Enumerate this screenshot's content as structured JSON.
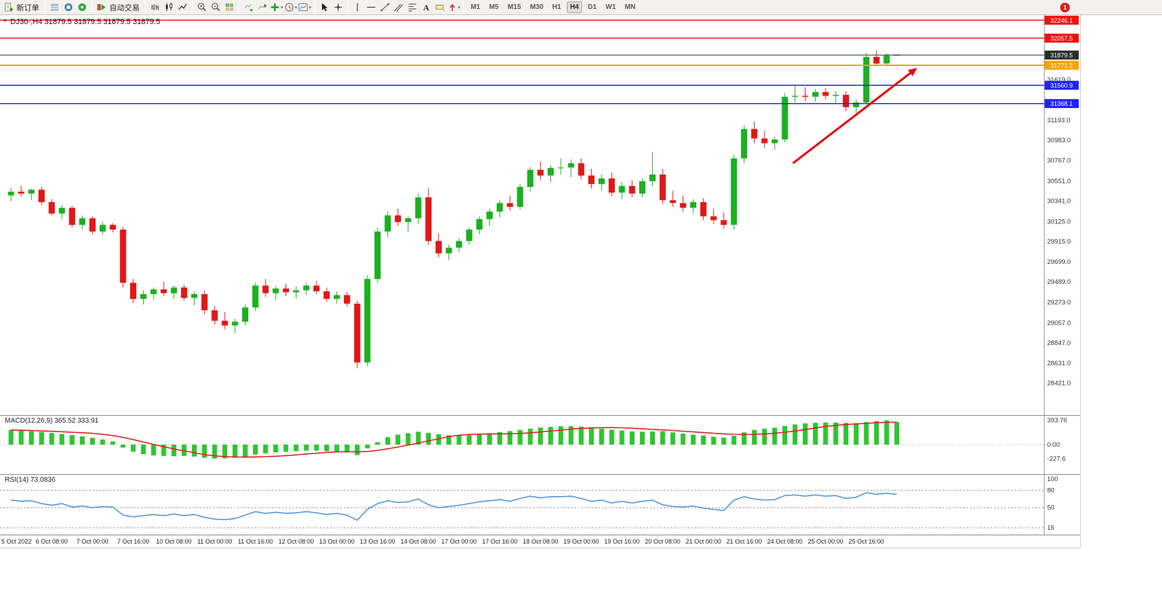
{
  "toolbar": {
    "new_order_label": "新订单",
    "auto_trading_label": "自动交易",
    "timeframes": [
      "M1",
      "M5",
      "M15",
      "M30",
      "H1",
      "H4",
      "D1",
      "W1",
      "MN"
    ],
    "active_timeframe": "H4",
    "notification_badge": "1",
    "icons": [
      "new-order",
      "charts",
      "data-window",
      "navigator",
      "auto-trading-play",
      "bar-chart",
      "candlestick-chart",
      "line-chart",
      "zoom-in",
      "zoom-out",
      "tile-windows",
      "auto-scroll",
      "chart-shift",
      "indicators-plus",
      "periods-clock",
      "templates",
      "cursor-arrow",
      "crosshair",
      "vertical-line",
      "horizontal-line",
      "trendline",
      "equidistant-channel",
      "fibonacci",
      "text-a",
      "text-label",
      "arrows"
    ]
  },
  "chart": {
    "title": "DJ30-,H4 31879.5 31879.5 31879.5 31879.5",
    "symbol": "DJ30-",
    "period": "H4",
    "ohlc_display": {
      "open": "31879.5",
      "high": "31879.5",
      "low": "31879.5",
      "close": "31879.5"
    }
  },
  "indicators": {
    "macd": {
      "label": "MACD(12,26,9) 365.52 333.91"
    },
    "rsi": {
      "label": "RSI(14) 73.0836"
    }
  },
  "chart_data": {
    "type": "candlestick",
    "symbol": "DJ30-",
    "timeframe": "H4",
    "colors": {
      "bull": "#1cb022",
      "bear": "#e01818",
      "macd_hist": "#2fc52f",
      "macd_signal": "#dd2222",
      "rsi_line": "#4a90d9",
      "arrow": "#dd1111"
    },
    "price_ylim": [
      28086,
      32300
    ],
    "candles_ohlc": [
      [
        30400,
        30480,
        30340,
        30440
      ],
      [
        30440,
        30500,
        30390,
        30420
      ],
      [
        30420,
        30470,
        30350,
        30460
      ],
      [
        30460,
        30490,
        30300,
        30330
      ],
      [
        30330,
        30360,
        30190,
        30210
      ],
      [
        30210,
        30300,
        30150,
        30270
      ],
      [
        30270,
        30290,
        30060,
        30090
      ],
      [
        30090,
        30190,
        30040,
        30160
      ],
      [
        30160,
        30180,
        29990,
        30020
      ],
      [
        30020,
        30120,
        29990,
        30090
      ],
      [
        30090,
        30110,
        30010,
        30040
      ],
      [
        30040,
        30070,
        29430,
        29480
      ],
      [
        29480,
        29520,
        29270,
        29310
      ],
      [
        29310,
        29400,
        29250,
        29360
      ],
      [
        29360,
        29430,
        29300,
        29410
      ],
      [
        29410,
        29490,
        29340,
        29370
      ],
      [
        29370,
        29450,
        29310,
        29430
      ],
      [
        29430,
        29460,
        29290,
        29320
      ],
      [
        29320,
        29390,
        29240,
        29360
      ],
      [
        29360,
        29400,
        29150,
        29190
      ],
      [
        29190,
        29240,
        29040,
        29080
      ],
      [
        29080,
        29170,
        28990,
        29030
      ],
      [
        29030,
        29100,
        28950,
        29070
      ],
      [
        29070,
        29250,
        29030,
        29220
      ],
      [
        29220,
        29480,
        29180,
        29450
      ],
      [
        29450,
        29520,
        29330,
        29370
      ],
      [
        29370,
        29450,
        29300,
        29420
      ],
      [
        29420,
        29470,
        29340,
        29380
      ],
      [
        29380,
        29440,
        29310,
        29400
      ],
      [
        29400,
        29480,
        29350,
        29450
      ],
      [
        29450,
        29500,
        29360,
        29390
      ],
      [
        29390,
        29430,
        29280,
        29310
      ],
      [
        29310,
        29390,
        29260,
        29350
      ],
      [
        29350,
        29380,
        29230,
        29260
      ],
      [
        29260,
        29290,
        28580,
        28640
      ],
      [
        28640,
        29560,
        28600,
        29520
      ],
      [
        29520,
        30060,
        29480,
        30020
      ],
      [
        30020,
        30230,
        29960,
        30190
      ],
      [
        30190,
        30260,
        30080,
        30120
      ],
      [
        30120,
        30180,
        30020,
        30160
      ],
      [
        30160,
        30420,
        30100,
        30380
      ],
      [
        30380,
        30480,
        29880,
        29920
      ],
      [
        29920,
        30000,
        29750,
        29790
      ],
      [
        29790,
        29880,
        29720,
        29850
      ],
      [
        29850,
        29950,
        29800,
        29920
      ],
      [
        29920,
        30060,
        29880,
        30040
      ],
      [
        30040,
        30180,
        29990,
        30150
      ],
      [
        30150,
        30260,
        30080,
        30230
      ],
      [
        30230,
        30350,
        30170,
        30320
      ],
      [
        30320,
        30400,
        30240,
        30280
      ],
      [
        30280,
        30520,
        30250,
        30490
      ],
      [
        30490,
        30700,
        30440,
        30670
      ],
      [
        30670,
        30760,
        30560,
        30610
      ],
      [
        30610,
        30720,
        30540,
        30690
      ],
      [
        30690,
        30790,
        30620,
        30695
      ],
      [
        30695,
        30780,
        30590,
        30740
      ],
      [
        30740,
        30790,
        30570,
        30610
      ],
      [
        30610,
        30680,
        30470,
        30520
      ],
      [
        30520,
        30620,
        30450,
        30580
      ],
      [
        30580,
        30640,
        30390,
        30430
      ],
      [
        30430,
        30540,
        30360,
        30500
      ],
      [
        30500,
        30560,
        30380,
        30420
      ],
      [
        30420,
        30580,
        30380,
        30550
      ],
      [
        30550,
        30860,
        30500,
        30620
      ],
      [
        30620,
        30680,
        30310,
        30350
      ],
      [
        30350,
        30450,
        30280,
        30320
      ],
      [
        30320,
        30400,
        30230,
        30270
      ],
      [
        30270,
        30360,
        30210,
        30330
      ],
      [
        30330,
        30370,
        30140,
        30180
      ],
      [
        30180,
        30260,
        30100,
        30140
      ],
      [
        30140,
        30220,
        30050,
        30090
      ],
      [
        30090,
        30830,
        30040,
        30790
      ],
      [
        30790,
        31140,
        30740,
        31100
      ],
      [
        31100,
        31180,
        30950,
        31000
      ],
      [
        31000,
        31080,
        30900,
        30950
      ],
      [
        30950,
        31020,
        30880,
        30990
      ],
      [
        30990,
        31480,
        30960,
        31440
      ],
      [
        31440,
        31560,
        31380,
        31450
      ],
      [
        31450,
        31540,
        31400,
        31440
      ],
      [
        31440,
        31520,
        31390,
        31490
      ],
      [
        31490,
        31530,
        31410,
        31450
      ],
      [
        31450,
        31500,
        31380,
        31460
      ],
      [
        31460,
        31500,
        31290,
        31330
      ],
      [
        31330,
        31410,
        31270,
        31380
      ],
      [
        31380,
        31900,
        31360,
        31860
      ],
      [
        31860,
        31930,
        31760,
        31790
      ],
      [
        31790,
        31900,
        31770,
        31875
      ],
      [
        31879.5,
        31879.5,
        31879.5,
        31879.5
      ]
    ],
    "time_labels": [
      {
        "i": 0,
        "t": "5 Oct 2022"
      },
      {
        "i": 4,
        "t": "6 Oct 08:00"
      },
      {
        "i": 8,
        "t": "7 Oct 00:00"
      },
      {
        "i": 12,
        "t": "7 Oct 16:00"
      },
      {
        "i": 16,
        "t": "10 Oct 08:00"
      },
      {
        "i": 20,
        "t": "11 Oct 00:00"
      },
      {
        "i": 24,
        "t": "11 Oct 16:00"
      },
      {
        "i": 28,
        "t": "12 Oct 08:00"
      },
      {
        "i": 32,
        "t": "13 Oct 00:00"
      },
      {
        "i": 36,
        "t": "13 Oct 16:00"
      },
      {
        "i": 40,
        "t": "14 Oct 08:00"
      },
      {
        "i": 44,
        "t": "17 Oct 00:00"
      },
      {
        "i": 48,
        "t": "17 Oct 16:00"
      },
      {
        "i": 52,
        "t": "18 Oct 08:00"
      },
      {
        "i": 56,
        "t": "19 Oct 00:00"
      },
      {
        "i": 60,
        "t": "19 Oct 16:00"
      },
      {
        "i": 64,
        "t": "20 Oct 08:00"
      },
      {
        "i": 68,
        "t": "21 Oct 00:00"
      },
      {
        "i": 72,
        "t": "21 Oct 16:00"
      },
      {
        "i": 76,
        "t": "24 Oct 08:00"
      },
      {
        "i": 80,
        "t": "25 Oct 00:00"
      },
      {
        "i": 84,
        "t": "25 Oct 16:00"
      }
    ],
    "price_ticks": [
      "31619.0",
      "31193.0",
      "30983.0",
      "30767.0",
      "30551.0",
      "30341.0",
      "30125.0",
      "29915.0",
      "29699.0",
      "29489.0",
      "29273.0",
      "29057.0",
      "28847.0",
      "28631.0",
      "28421.0"
    ],
    "hlines": [
      {
        "price": 32246.1,
        "label": "32246.1",
        "color": "#ee1111",
        "width": 1.5
      },
      {
        "price": 32057.5,
        "label": "32057.5",
        "color": "#ee1111",
        "width": 1.5
      },
      {
        "price": 31771.2,
        "label": "31771.2",
        "color": "#f5a300",
        "width": 2
      },
      {
        "price": 31560.9,
        "label": "31560.9",
        "color": "#2222ee",
        "width": 1.5
      },
      {
        "price": 31368.1,
        "label": "31368.1",
        "color": "#2222ee",
        "width": 1.5
      },
      {
        "price": 31879.5,
        "label": "31879.5",
        "color": "#2b2b2b",
        "width": 1
      }
    ],
    "trend_arrow": {
      "from_bar": 76.8,
      "from_price": 30740,
      "to_bar": 89,
      "to_price": 31745
    },
    "macd_histogram": [
      238,
      228,
      218,
      205,
      190,
      174,
      155,
      133,
      110,
      84,
      52,
      -48,
      -115,
      -155,
      -175,
      -184,
      -188,
      -184,
      -194,
      -214,
      -227.6,
      -223,
      -212,
      -194,
      -160,
      -141,
      -126,
      -116,
      -107,
      -97,
      -97,
      -107,
      -115,
      -126,
      -170,
      -60,
      40,
      120,
      160,
      186,
      210,
      190,
      168,
      152,
      148,
      154,
      168,
      184,
      202,
      218,
      238,
      260,
      276,
      288,
      296,
      300,
      292,
      274,
      258,
      242,
      228,
      214,
      208,
      214,
      218,
      198,
      178,
      162,
      148,
      128,
      114,
      144,
      198,
      238,
      258,
      274,
      302,
      328,
      344,
      354,
      358,
      358,
      352,
      348,
      364,
      382,
      393.76,
      365.52
    ],
    "macd_ylim": [
      -479,
      468
    ],
    "macd_axis": [
      {
        "v": 393.76,
        "t": "393.76"
      },
      {
        "v": 0,
        "t": "0.00"
      },
      {
        "v": -227.6,
        "t": "-227.6"
      }
    ],
    "macd_current": {
      "macd": 365.52,
      "signal": 333.91
    },
    "rsi_values": [
      63,
      61,
      62,
      57,
      54,
      57,
      51,
      53,
      50,
      52,
      51,
      37,
      34,
      36,
      38,
      36,
      39,
      36,
      38,
      33,
      30,
      29,
      31,
      37,
      43,
      40,
      42,
      40,
      41,
      43,
      41,
      38,
      40,
      37,
      28,
      47,
      57,
      62,
      59,
      60,
      65,
      55,
      50,
      52,
      54,
      57,
      60,
      62,
      64,
      61,
      66,
      70,
      67,
      69,
      69,
      70,
      66,
      61,
      63,
      58,
      61,
      58,
      61,
      63,
      55,
      52,
      51,
      53,
      49,
      47,
      45,
      63,
      69,
      65,
      63,
      64,
      71,
      72,
      70,
      72,
      70,
      71,
      66,
      68,
      76,
      73,
      75,
      73.0836
    ],
    "rsi_ylim": [
      3,
      107
    ],
    "rsi_levels": [
      80,
      50,
      15
    ],
    "rsi_axis": [
      {
        "v": 100,
        "t": "100"
      },
      {
        "v": 80,
        "t": "80"
      },
      {
        "v": 50,
        "t": "50"
      },
      {
        "v": 15,
        "t": "15"
      }
    ]
  }
}
